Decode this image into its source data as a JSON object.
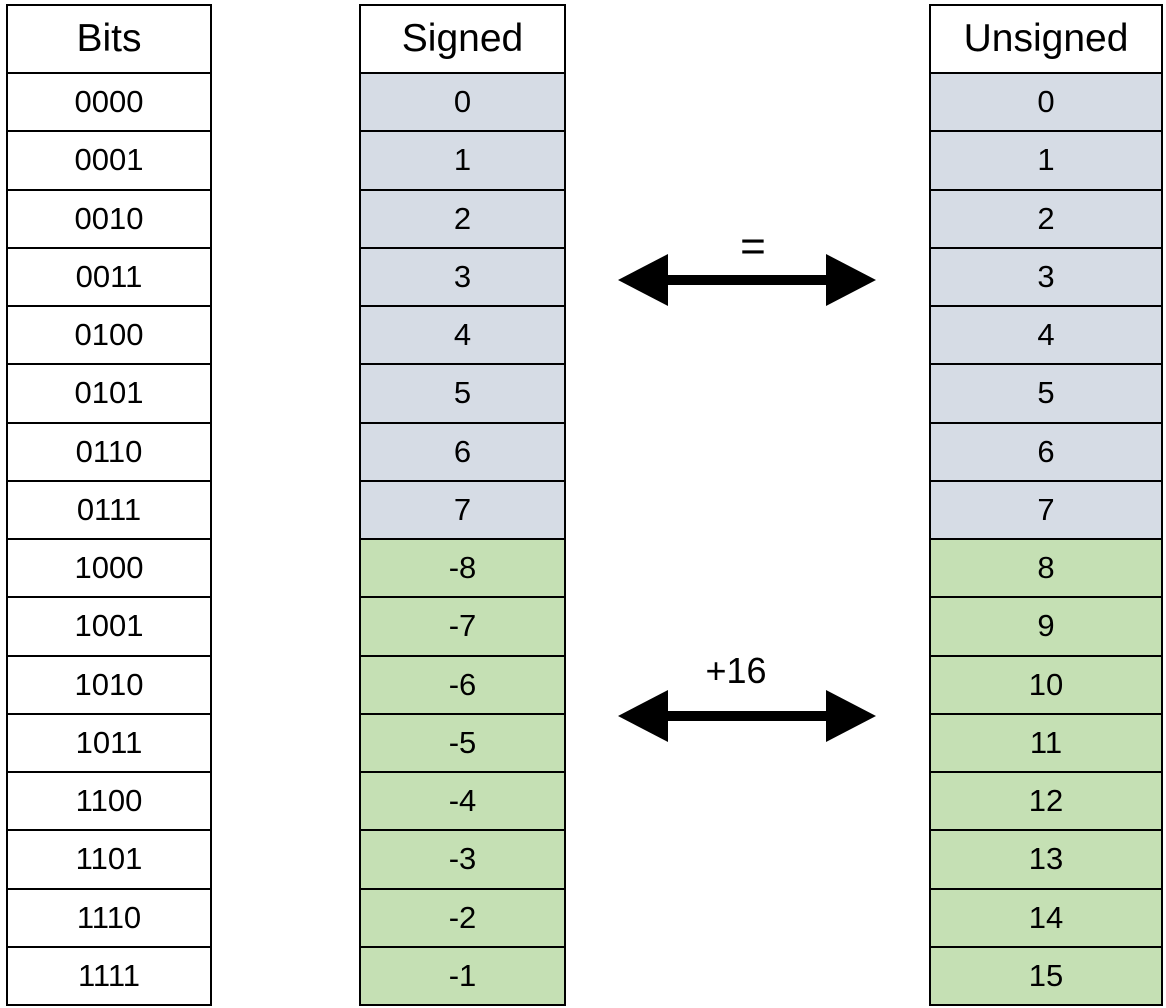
{
  "columns": {
    "bits": {
      "header": "Bits",
      "values": [
        "0000",
        "0001",
        "0010",
        "0011",
        "0100",
        "0101",
        "0110",
        "0111",
        "1000",
        "1001",
        "1010",
        "1011",
        "1100",
        "1101",
        "1110",
        "1111"
      ]
    },
    "signed": {
      "header": "Signed",
      "values": [
        "0",
        "1",
        "2",
        "3",
        "4",
        "5",
        "6",
        "7",
        "-8",
        "-7",
        "-6",
        "-5",
        "-4",
        "-3",
        "-2",
        "-1"
      ]
    },
    "unsigned": {
      "header": "Unsigned",
      "values": [
        "0",
        "1",
        "2",
        "3",
        "4",
        "5",
        "6",
        "7",
        "8",
        "9",
        "10",
        "11",
        "12",
        "13",
        "14",
        "15"
      ]
    }
  },
  "arrows": {
    "top_label": "=",
    "bottom_label": "+16"
  },
  "colors": {
    "positive_fill": "#d6dce5",
    "negative_fill": "#c5e0b4",
    "border": "#000000"
  }
}
